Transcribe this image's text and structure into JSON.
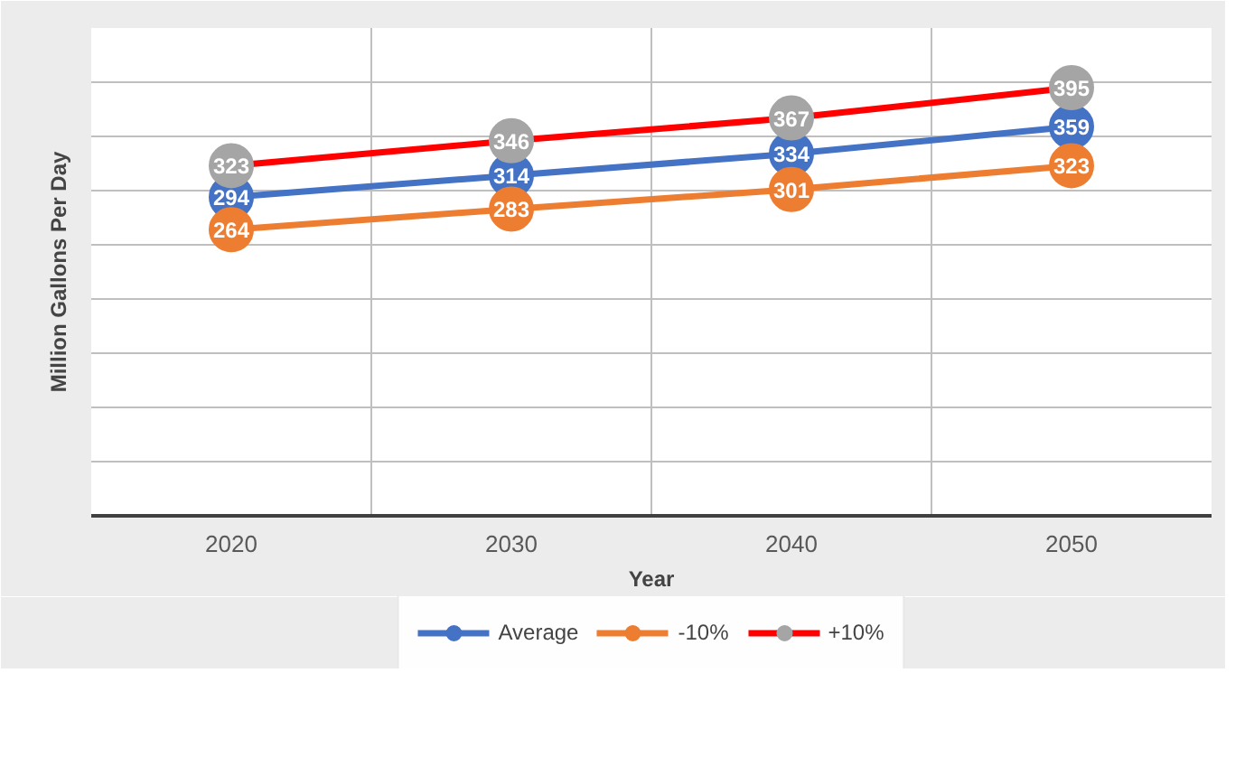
{
  "chart_data": {
    "type": "line",
    "xlabel": "Year",
    "ylabel": "Million Gallons Per Day",
    "categories": [
      "2020",
      "2030",
      "2040",
      "2050"
    ],
    "series": [
      {
        "name": "Average",
        "color": "#4472c4",
        "colors": [
          "#4472c4",
          "#4472c4",
          "#4472c4",
          "#4472c4"
        ],
        "values": [
          294,
          314,
          334,
          359
        ]
      },
      {
        "name": "-10%",
        "color": "#ed7d31",
        "colors": [
          "#ed7d31",
          "#ed7d31",
          "#ed7d31",
          "#ed7d31"
        ],
        "values": [
          264,
          283,
          301,
          323
        ]
      },
      {
        "name": "+10%",
        "color": "#ff0000",
        "colors": [
          "#a5a5a5",
          "#a5a5a5",
          "#a5a5a5",
          "#a5a5a5"
        ],
        "values": [
          323,
          346,
          367,
          395
        ]
      }
    ],
    "ylim": [
      0,
      450
    ],
    "yticks": [
      {
        "value": 0,
        "label": null
      },
      {
        "value": 50,
        "label": null
      },
      {
        "value": 100,
        "label": null
      },
      {
        "value": 150,
        "label": null
      },
      {
        "value": 200,
        "label": null
      },
      {
        "value": 250,
        "label": null
      },
      {
        "value": 300,
        "label": null
      },
      {
        "value": 350,
        "label": null
      },
      {
        "value": 400,
        "label": null
      }
    ],
    "tick_labels": "x",
    "grid": true,
    "legend": "bottom",
    "marker": "circle",
    "line_style": "solid",
    "data_labels": true
  }
}
